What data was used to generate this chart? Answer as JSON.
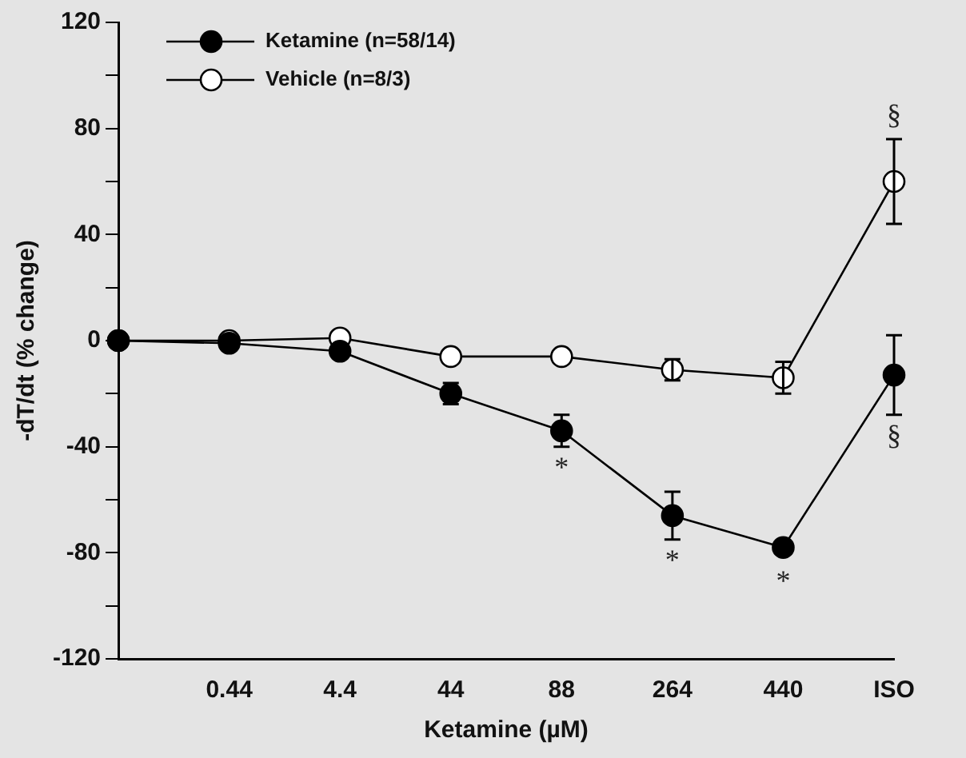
{
  "chart_data": {
    "type": "line",
    "xlabel": "Ketamine (µM)",
    "ylabel": "-dT/dt (% change)",
    "categories": [
      null,
      "0.44",
      "4.4",
      "44",
      "88",
      "264",
      "440",
      "ISO"
    ],
    "series": [
      {
        "name": "Ketamine (n=58/14)",
        "color": "#000000",
        "values": [
          0,
          -1,
          -4,
          -20,
          -34,
          -66,
          -78,
          -13
        ],
        "errors": [
          null,
          null,
          null,
          4,
          6,
          9,
          null,
          15
        ]
      },
      {
        "name": "Vehicle (n=8/3)",
        "color": "#000000",
        "values": [
          0,
          0,
          1,
          -6,
          -6,
          -11,
          -14,
          60
        ],
        "errors": [
          null,
          null,
          null,
          null,
          null,
          4,
          6,
          16
        ]
      }
    ],
    "ylim": [
      -120,
      120
    ],
    "yticks": [
      -120,
      {
        "value": -100,
        "label": null
      },
      -80,
      {
        "value": -60,
        "label": null
      },
      -40,
      {
        "value": -20,
        "label": null
      },
      0,
      {
        "value": 20,
        "label": null
      },
      40,
      {
        "value": 60,
        "label": null
      },
      80,
      {
        "value": 100,
        "label": null
      },
      120
    ],
    "annotations": [
      {
        "text": "*",
        "x": "88",
        "y": -34
      },
      {
        "text": "*",
        "x": "264",
        "y": -66
      },
      {
        "text": "*",
        "x": "440",
        "y": -78
      },
      {
        "text": "§",
        "x": "ISO",
        "y": 60
      },
      {
        "text": "§",
        "x": "ISO",
        "y": -13
      }
    ],
    "grid": false,
    "legend": "top left",
    "marker": "circle",
    "line_style": "solid"
  }
}
